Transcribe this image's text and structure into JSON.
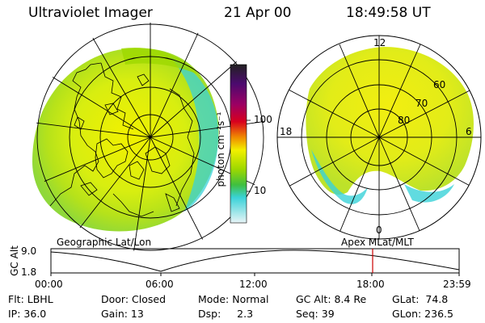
{
  "header": {
    "instrument": "Ultraviolet Imager",
    "date": "21 Apr 00",
    "time": "18:49:58 UT"
  },
  "colors": {
    "bar_top": "#222222",
    "bar_purple": "#4b0a6e",
    "bar_magenta": "#9b0064",
    "bar_red": "#d8001e",
    "bar_orange": "#f08c00",
    "bar_yellow": "#f2f000",
    "bar_green": "#9ed800",
    "bar_greenlow": "#3fbf40",
    "bar_cyan": "#3ad2d8",
    "bar_light": "#e8f4f6",
    "marker_line": "#cc0000"
  },
  "colorbar": {
    "unit_label": "photon cm⁻²s⁻¹",
    "ticks": [
      "100",
      "10"
    ]
  },
  "left_map": {
    "caption": "Geographic Lat/Lon"
  },
  "right_map": {
    "caption": "Apex MLat/MLT",
    "mlt_labels": [
      "12",
      "18",
      "6",
      "0"
    ],
    "lat_labels": [
      "60",
      "70",
      "80"
    ]
  },
  "altitude_plot": {
    "axis_label": "GC Alt",
    "y_ticks": [
      "9.0",
      "1.8"
    ],
    "x_ticks": [
      "00:00",
      "06:00",
      "12:00",
      "18:00",
      "23:59"
    ],
    "marker_time": "18:49"
  },
  "status": {
    "filter": "Flt: LBHL",
    "ip": "IP: 36.0",
    "door": "Door: Closed",
    "gain": "Gain: 13",
    "mode": "Mode: Normal",
    "dsp": "Dsp:     2.3",
    "gc_alt": "GC Alt: 8.4 Re",
    "seq": "Seq: 39",
    "glat": "GLat:  74.8",
    "glon": "GLon: 236.5"
  }
}
